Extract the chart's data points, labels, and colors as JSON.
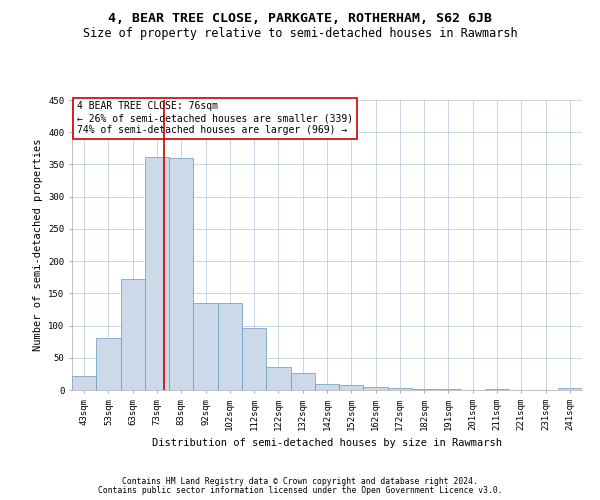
{
  "title": "4, BEAR TREE CLOSE, PARKGATE, ROTHERHAM, S62 6JB",
  "subtitle": "Size of property relative to semi-detached houses in Rawmarsh",
  "xlabel": "Distribution of semi-detached houses by size in Rawmarsh",
  "ylabel": "Number of semi-detached properties",
  "bar_color": "#ccd9e8",
  "bar_edge_color": "#6699bb",
  "categories": [
    "43sqm",
    "53sqm",
    "63sqm",
    "73sqm",
    "83sqm",
    "92sqm",
    "102sqm",
    "112sqm",
    "122sqm",
    "132sqm",
    "142sqm",
    "152sqm",
    "162sqm",
    "172sqm",
    "182sqm",
    "191sqm",
    "201sqm",
    "211sqm",
    "221sqm",
    "231sqm",
    "241sqm"
  ],
  "bar_heights": [
    21,
    80,
    172,
    362,
    360,
    135,
    135,
    96,
    35,
    26,
    10,
    7,
    4,
    3,
    2,
    1,
    0,
    1,
    0,
    0,
    3
  ],
  "ylim": [
    0,
    450
  ],
  "yticks": [
    0,
    50,
    100,
    150,
    200,
    250,
    300,
    350,
    400,
    450
  ],
  "red_line_x": 3.3,
  "red_line_color": "#cc0000",
  "annotation_text": "4 BEAR TREE CLOSE: 76sqm\n← 26% of semi-detached houses are smaller (339)\n74% of semi-detached houses are larger (969) →",
  "annotation_box_color": "#ffffff",
  "annotation_box_edge_color": "#cc0000",
  "footer1": "Contains HM Land Registry data © Crown copyright and database right 2024.",
  "footer2": "Contains public sector information licensed under the Open Government Licence v3.0.",
  "background_color": "#ffffff",
  "grid_color": "#c0cfe0",
  "title_fontsize": 9.5,
  "subtitle_fontsize": 8.5,
  "axis_label_fontsize": 7.5,
  "tick_fontsize": 6.5,
  "footer_fontsize": 5.8,
  "annotation_fontsize": 7.0
}
